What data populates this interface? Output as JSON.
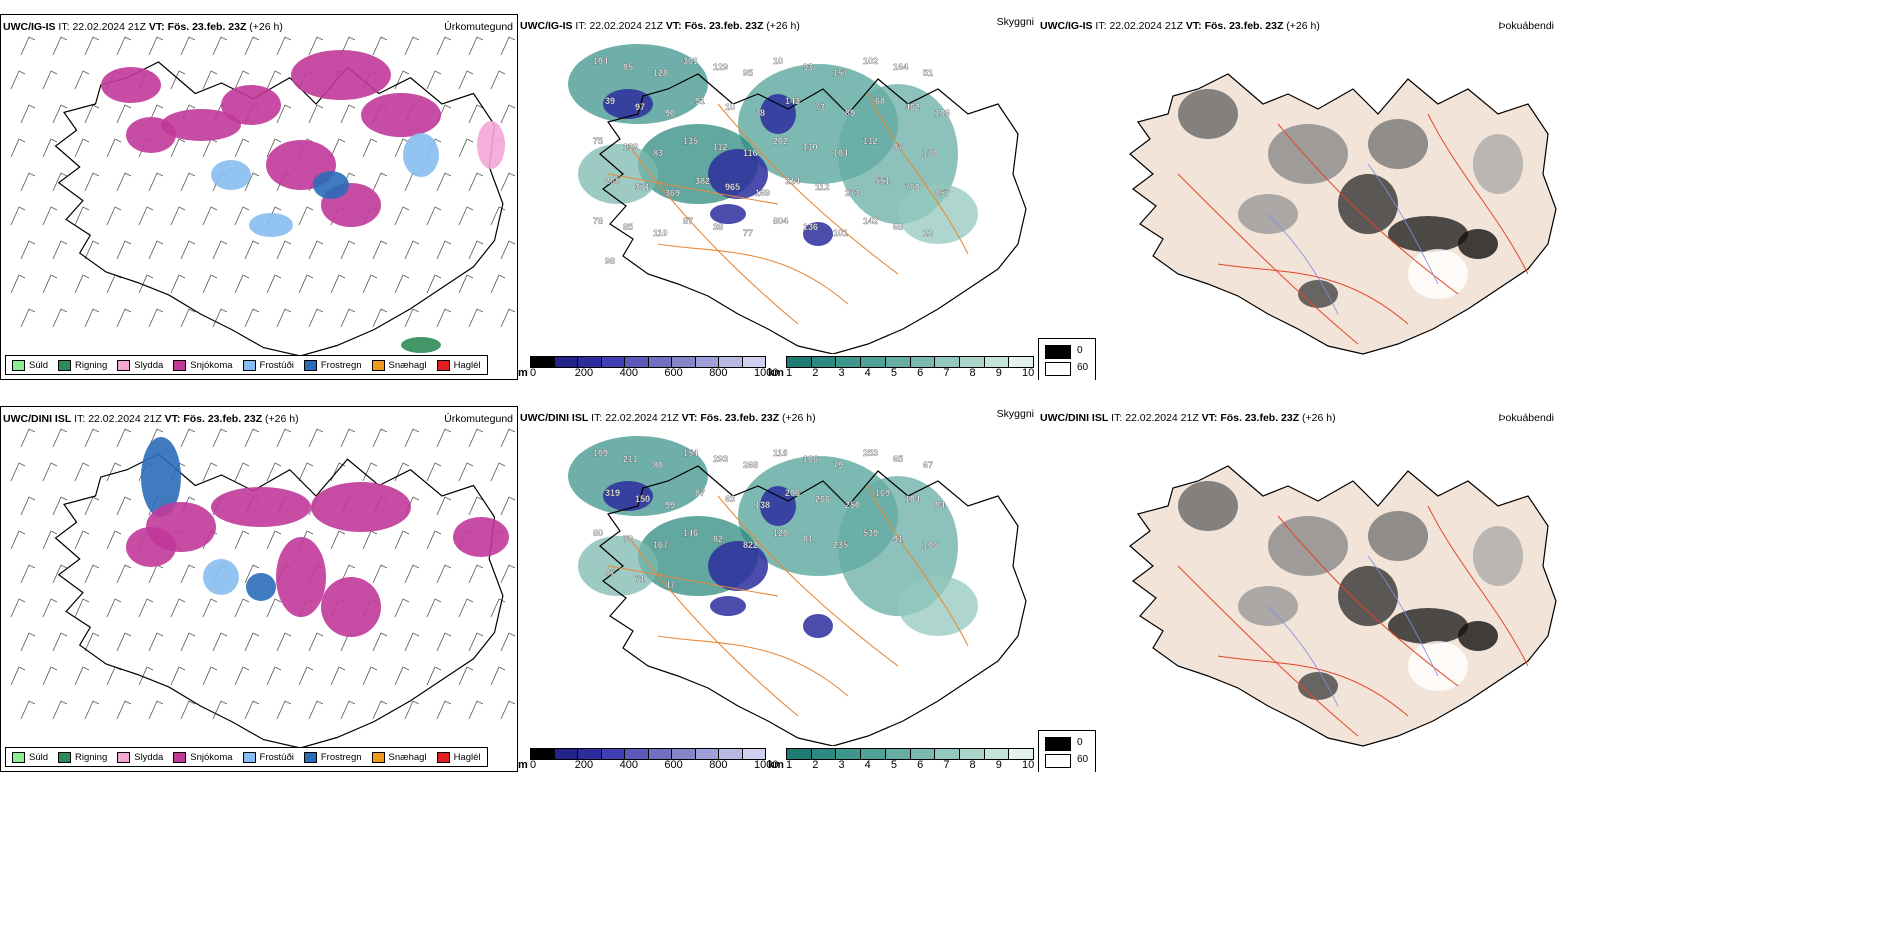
{
  "rows": [
    {
      "model": "UWC/IG-IS",
      "it_label": "IT:",
      "it_value": "22.02.2024 21Z",
      "vt_label": "VT:",
      "vt_value": "Fös. 23.feb. 23Z",
      "lead": "(+26 h)",
      "titles": {
        "precip": "Úrkomutegund",
        "visibility": "Skyggni",
        "fog": "Þokuábendi"
      },
      "visibility_labels": [
        "104",
        "85",
        "128",
        "301",
        "129",
        "95",
        "10",
        "93",
        "157",
        "102",
        "164",
        "51",
        "39",
        "97",
        "90",
        "91",
        "10",
        "78",
        "143",
        "73",
        "89",
        "68",
        "462",
        "106",
        "75",
        "133",
        "83",
        "135",
        "112",
        "116",
        "202",
        "110",
        "104",
        "112",
        "87",
        "170",
        "268",
        "371",
        "369",
        "382",
        "965",
        "169",
        "214",
        "112",
        "273",
        "551",
        "760",
        "857",
        "78",
        "85",
        "110",
        "87",
        "38",
        "77",
        "804",
        "136",
        "101",
        "142",
        "68",
        "12",
        "98"
      ]
    },
    {
      "model": "UWC/DINI ISL",
      "it_label": "IT:",
      "it_value": "22.02.2024 21Z",
      "vt_label": "VT:",
      "vt_value": "Fös. 23.feb. 23Z",
      "lead": "(+26 h)",
      "titles": {
        "precip": "Úrkomutegund",
        "visibility": "Skyggni",
        "fog": "Þokuábendi"
      },
      "visibility_labels": [
        "109",
        "211",
        "80",
        "154",
        "293",
        "268",
        "118",
        "106",
        "79",
        "253",
        "65",
        "67",
        "319",
        "150",
        "99",
        "87",
        "63",
        "138",
        "206",
        "266",
        "250",
        "169",
        "104",
        "84",
        "80",
        "78",
        "167",
        "146",
        "82",
        "822",
        "120",
        "81",
        "235",
        "539",
        "91",
        "106",
        "87",
        "71",
        "47"
      ]
    }
  ],
  "precip_legend": [
    {
      "label": "Súld",
      "color": "#90ee90"
    },
    {
      "label": "Rigning",
      "color": "#2e8b57"
    },
    {
      "label": "Slydda",
      "color": "#f4a6d7"
    },
    {
      "label": "Snjókoma",
      "color": "#c0399a"
    },
    {
      "label": "Frostúði",
      "color": "#87bdf0"
    },
    {
      "label": "Frostregn",
      "color": "#2b6cb8"
    },
    {
      "label": "Snæhagl",
      "color": "#f39a1c"
    },
    {
      "label": "Haglél",
      "color": "#e02020"
    }
  ],
  "cloud_base_bar": {
    "unit": "m",
    "ticks": [
      "0",
      "200",
      "400",
      "600",
      "800",
      "1000"
    ],
    "colors": [
      "#000000",
      "#23238a",
      "#2d2d9e",
      "#4040b0",
      "#5a5ab8",
      "#7070c0",
      "#8585c8",
      "#a0a0d8",
      "#b8b8e4",
      "#d0d0f0"
    ]
  },
  "visibility_bar": {
    "unit": "km",
    "ticks": [
      "1",
      "2",
      "3",
      "4",
      "5",
      "6",
      "7",
      "8",
      "9",
      "10"
    ],
    "colors": [
      "#1f7a72",
      "#2e8a80",
      "#3e968c",
      "#50a298",
      "#66aea4",
      "#7cbab0",
      "#94c8be",
      "#acd6cc",
      "#c6e4dc",
      "#e2f2ee"
    ]
  },
  "fog_legend": [
    {
      "label": "0",
      "color": "#000000"
    },
    {
      "label": "60",
      "color": "#ffffff"
    }
  ]
}
